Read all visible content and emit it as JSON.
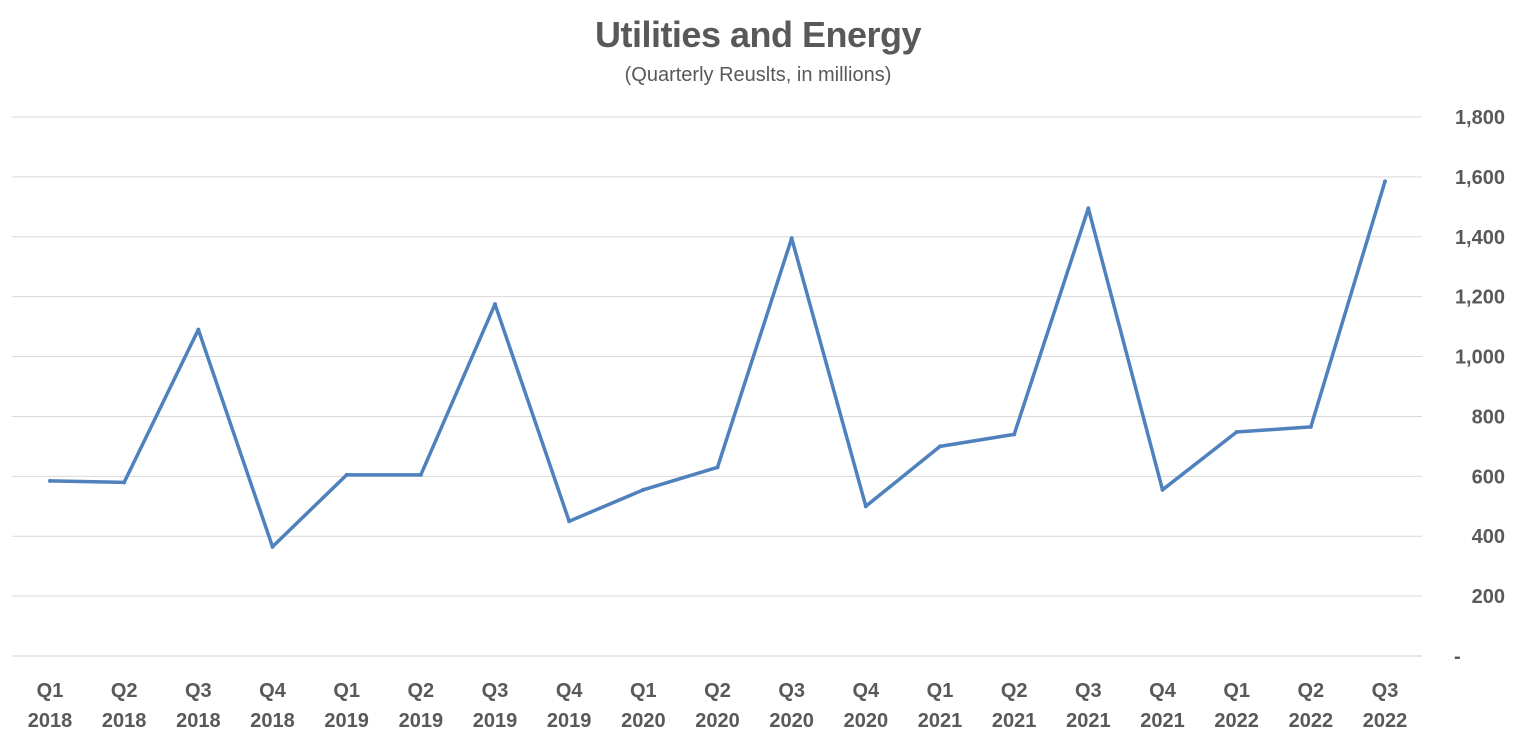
{
  "chart_data": {
    "type": "line",
    "title": "Utilities and Energy",
    "subtitle": "(Quarterly Reuslts, in millions)",
    "categories": [
      [
        "Q1",
        "2018"
      ],
      [
        "Q2",
        "2018"
      ],
      [
        "Q3",
        "2018"
      ],
      [
        "Q4",
        "2018"
      ],
      [
        "Q1",
        "2019"
      ],
      [
        "Q2",
        "2019"
      ],
      [
        "Q3",
        "2019"
      ],
      [
        "Q4",
        "2019"
      ],
      [
        "Q1",
        "2020"
      ],
      [
        "Q2",
        "2020"
      ],
      [
        "Q3",
        "2020"
      ],
      [
        "Q4",
        "2020"
      ],
      [
        "Q1",
        "2021"
      ],
      [
        "Q2",
        "2021"
      ],
      [
        "Q3",
        "2021"
      ],
      [
        "Q4",
        "2021"
      ],
      [
        "Q1",
        "2022"
      ],
      [
        "Q2",
        "2022"
      ],
      [
        "Q3",
        "2022"
      ]
    ],
    "series": [
      {
        "values": [
          585,
          580,
          1090,
          365,
          605,
          605,
          1175,
          450,
          555,
          630,
          1395,
          500,
          700,
          740,
          1495,
          555,
          748,
          765,
          1585
        ],
        "color": "#4F81BD"
      }
    ],
    "y_ticks": [
      "-",
      "200",
      "400",
      "600",
      "800",
      "1,000",
      "1,200",
      "1,400",
      "1,600",
      "1,800"
    ],
    "ylim": [
      0,
      1800
    ],
    "y_axis_position": "right",
    "grid": true,
    "legend": "none",
    "colors": {
      "grid": "#D9D9D9",
      "text": "#595959",
      "line": "#4F81BD"
    }
  }
}
